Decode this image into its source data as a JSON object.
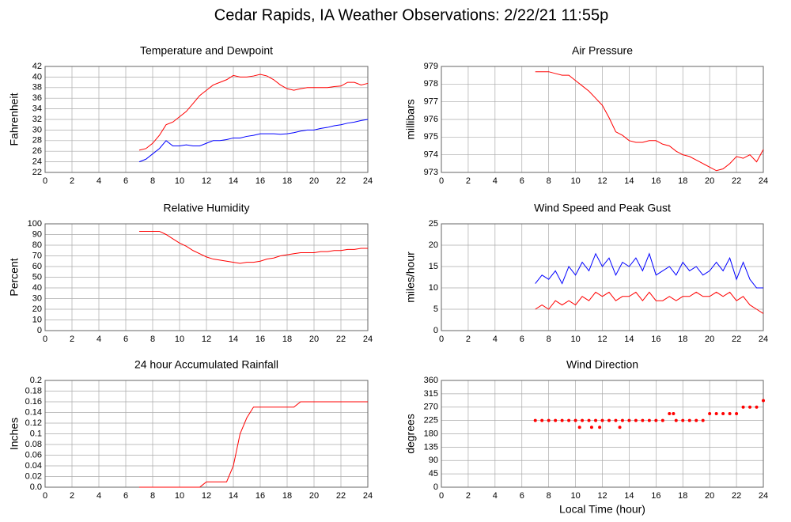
{
  "title": "Cedar Rapids, IA Weather Observations: 2/22/21 11:55p",
  "chart_data": [
    {
      "type": "line",
      "title": "Temperature and Dewpoint",
      "ylabel": "Fahrenheit",
      "x": [
        7,
        7.5,
        8,
        8.5,
        9,
        9.5,
        10,
        10.5,
        11,
        11.5,
        12,
        12.5,
        13,
        13.5,
        14,
        14.5,
        15,
        15.5,
        16,
        16.5,
        17,
        17.5,
        18,
        18.5,
        19,
        19.5,
        20,
        20.5,
        21,
        21.5,
        22,
        22.5,
        23,
        23.5,
        24
      ],
      "series": [
        {
          "color": "#ff0000",
          "values": [
            26.2,
            26.5,
            27.5,
            29,
            31,
            31.5,
            32.5,
            33.5,
            35,
            36.5,
            37.5,
            38.5,
            39,
            39.5,
            40.3,
            40,
            40,
            40.2,
            40.5,
            40.2,
            39.5,
            38.5,
            37.8,
            37.5,
            37.8,
            38,
            38,
            38,
            38,
            38.2,
            38.3,
            39,
            39,
            38.5,
            38.8
          ]
        },
        {
          "color": "#0000ff",
          "values": [
            24,
            24.5,
            25.5,
            26.5,
            28,
            27,
            27,
            27.2,
            27,
            27,
            27.5,
            28,
            28,
            28.2,
            28.5,
            28.5,
            28.8,
            29,
            29.3,
            29.3,
            29.3,
            29.2,
            29.3,
            29.5,
            29.8,
            30,
            30,
            30.3,
            30.5,
            30.8,
            31,
            31.3,
            31.5,
            31.8,
            32
          ]
        }
      ],
      "xlim": [
        0,
        24
      ],
      "xticks": [
        0,
        2,
        4,
        6,
        8,
        10,
        12,
        14,
        16,
        18,
        20,
        22,
        24
      ],
      "ylim": [
        22,
        42
      ],
      "yticks": [
        22,
        24,
        26,
        28,
        30,
        32,
        34,
        36,
        38,
        40,
        42
      ],
      "grid": true
    },
    {
      "type": "line",
      "title": "Air Pressure",
      "ylabel": "millibars",
      "x": [
        7,
        7.5,
        8,
        8.5,
        9,
        9.5,
        10,
        10.5,
        11,
        11.5,
        12,
        12.5,
        13,
        13.5,
        14,
        14.5,
        15,
        15.5,
        16,
        16.5,
        17,
        17.5,
        18,
        18.5,
        19,
        19.5,
        20,
        20.5,
        21,
        21.5,
        22,
        22.5,
        23,
        23.5,
        24
      ],
      "series": [
        {
          "color": "#ff0000",
          "values": [
            978.7,
            978.7,
            978.7,
            978.6,
            978.5,
            978.5,
            978.2,
            977.9,
            977.6,
            977.2,
            976.8,
            976.1,
            975.3,
            975.1,
            974.8,
            974.7,
            974.7,
            974.8,
            974.8,
            974.6,
            974.5,
            974.2,
            974,
            973.9,
            973.7,
            973.5,
            973.3,
            973.1,
            973.2,
            973.5,
            973.9,
            973.8,
            974,
            973.6,
            974.3
          ]
        }
      ],
      "xlim": [
        0,
        24
      ],
      "xticks": [
        0,
        2,
        4,
        6,
        8,
        10,
        12,
        14,
        16,
        18,
        20,
        22,
        24
      ],
      "ylim": [
        973,
        979
      ],
      "yticks": [
        973,
        974,
        975,
        976,
        977,
        978,
        979
      ],
      "grid": true
    },
    {
      "type": "line",
      "title": "Relative Humidity",
      "ylabel": "Percent",
      "x": [
        7,
        7.5,
        8,
        8.5,
        9,
        9.5,
        10,
        10.5,
        11,
        11.5,
        12,
        12.5,
        13,
        13.5,
        14,
        14.5,
        15,
        15.5,
        16,
        16.5,
        17,
        17.5,
        18,
        18.5,
        19,
        19.5,
        20,
        20.5,
        21,
        21.5,
        22,
        22.5,
        23,
        23.5,
        24
      ],
      "series": [
        {
          "color": "#ff0000",
          "values": [
            93,
            93,
            93,
            93,
            90,
            86,
            82,
            79,
            75,
            72,
            69,
            67,
            66,
            65,
            64,
            63,
            64,
            64,
            65,
            67,
            68,
            70,
            71,
            72,
            73,
            73,
            73,
            74,
            74,
            75,
            75,
            76,
            76,
            77,
            77
          ]
        }
      ],
      "xlim": [
        0,
        24
      ],
      "xticks": [
        0,
        2,
        4,
        6,
        8,
        10,
        12,
        14,
        16,
        18,
        20,
        22,
        24
      ],
      "ylim": [
        0,
        100
      ],
      "yticks": [
        0,
        10,
        20,
        30,
        40,
        50,
        60,
        70,
        80,
        90,
        100
      ],
      "grid": true
    },
    {
      "type": "line",
      "title": "Wind Speed and Peak Gust",
      "ylabel": "miles/hour",
      "x": [
        7,
        7.5,
        8,
        8.5,
        9,
        9.5,
        10,
        10.5,
        11,
        11.5,
        12,
        12.5,
        13,
        13.5,
        14,
        14.5,
        15,
        15.5,
        16,
        16.5,
        17,
        17.5,
        18,
        18.5,
        19,
        19.5,
        20,
        20.5,
        21,
        21.5,
        22,
        22.5,
        23,
        23.5,
        24
      ],
      "series": [
        {
          "color": "#0000ff",
          "values": [
            11,
            13,
            12,
            14,
            11,
            15,
            13,
            16,
            14,
            18,
            15,
            17,
            13,
            16,
            15,
            17,
            14,
            18,
            13,
            14,
            15,
            13,
            16,
            14,
            15,
            13,
            14,
            16,
            14,
            17,
            12,
            16,
            12,
            10,
            10
          ]
        },
        {
          "color": "#ff0000",
          "values": [
            5,
            6,
            5,
            7,
            6,
            7,
            6,
            8,
            7,
            9,
            8,
            9,
            7,
            8,
            8,
            9,
            7,
            9,
            7,
            7,
            8,
            7,
            8,
            8,
            9,
            8,
            8,
            9,
            8,
            9,
            7,
            8,
            6,
            5,
            4
          ]
        }
      ],
      "xlim": [
        0,
        24
      ],
      "xticks": [
        0,
        2,
        4,
        6,
        8,
        10,
        12,
        14,
        16,
        18,
        20,
        22,
        24
      ],
      "ylim": [
        0,
        25
      ],
      "yticks": [
        0,
        5,
        10,
        15,
        20,
        25
      ],
      "grid": true
    },
    {
      "type": "line",
      "title": "24 hour Accumulated Rainfall",
      "ylabel": "Inches",
      "x": [
        7,
        7.5,
        8,
        8.5,
        9,
        9.5,
        10,
        10.5,
        11,
        11.5,
        12,
        12.5,
        13,
        13.5,
        14,
        14.5,
        15,
        15.5,
        16,
        16.5,
        17,
        17.5,
        18,
        18.5,
        19,
        19.5,
        20,
        20.5,
        21,
        21.5,
        22,
        22.5,
        23,
        23.5,
        24
      ],
      "series": [
        {
          "color": "#ff0000",
          "values": [
            0,
            0,
            0,
            0,
            0,
            0,
            0,
            0,
            0,
            0,
            0.01,
            0.01,
            0.01,
            0.01,
            0.04,
            0.1,
            0.13,
            0.15,
            0.15,
            0.15,
            0.15,
            0.15,
            0.15,
            0.15,
            0.16,
            0.16,
            0.16,
            0.16,
            0.16,
            0.16,
            0.16,
            0.16,
            0.16,
            0.16,
            0.16
          ]
        }
      ],
      "xlim": [
        0,
        24
      ],
      "xticks": [
        0,
        2,
        4,
        6,
        8,
        10,
        12,
        14,
        16,
        18,
        20,
        22,
        24
      ],
      "ylim": [
        0,
        0.2
      ],
      "yticks": [
        {
          "value": 0,
          "label": "0.0"
        },
        0.02,
        0.04,
        0.06,
        0.08,
        0.1,
        0.12,
        0.14,
        0.16,
        0.18,
        0.2
      ],
      "grid": true
    },
    {
      "type": "scatter",
      "title": "Wind Direction",
      "ylabel": "degrees",
      "xlabel": "Local Time (hour)",
      "x": [
        7,
        7.5,
        8,
        8.5,
        9,
        9.5,
        10,
        10.3,
        10.5,
        11,
        11.2,
        11.5,
        11.8,
        12,
        12.5,
        13,
        13.3,
        13.5,
        14,
        14.5,
        15,
        15.5,
        16,
        16.5,
        17,
        17.3,
        17.5,
        18,
        18.5,
        19,
        19.5,
        20,
        20.5,
        21,
        21.5,
        22,
        22.5,
        23,
        23.5,
        24
      ],
      "series": [
        {
          "color": "#ff0000",
          "values": [
            225,
            225,
            225,
            225,
            225,
            225,
            225,
            202,
            225,
            225,
            202,
            225,
            202,
            225,
            225,
            225,
            202,
            225,
            225,
            225,
            225,
            225,
            225,
            225,
            248,
            248,
            225,
            225,
            225,
            225,
            225,
            248,
            248,
            248,
            248,
            248,
            270,
            270,
            270,
            292
          ]
        }
      ],
      "xlim": [
        0,
        24
      ],
      "xticks": [
        0,
        2,
        4,
        6,
        8,
        10,
        12,
        14,
        16,
        18,
        20,
        22,
        24
      ],
      "ylim": [
        0,
        360
      ],
      "yticks": [
        0,
        45,
        90,
        135,
        180,
        225,
        270,
        315,
        360
      ],
      "grid": true
    }
  ]
}
